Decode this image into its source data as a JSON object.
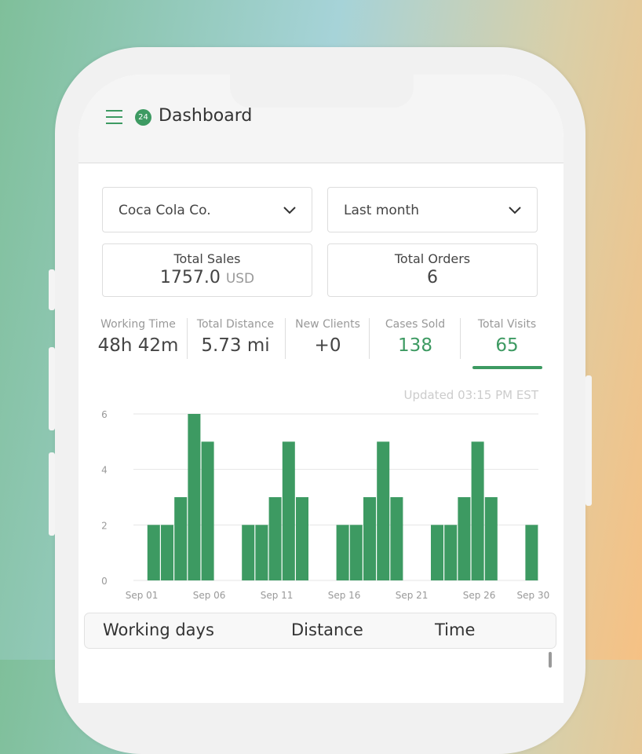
{
  "header": {
    "title": "Dashboard",
    "badge": "24",
    "menu_icon": "hamburger-menu-icon"
  },
  "filters": {
    "company": "Coca Cola Co.",
    "period": "Last month"
  },
  "cards": [
    {
      "label": "Total Sales",
      "value": "1757.0",
      "unit": "USD"
    },
    {
      "label": "Total Orders",
      "value": "6"
    }
  ],
  "stats": [
    {
      "label": "Working Time",
      "value": "48h 42m"
    },
    {
      "label": "Total Distance",
      "value": "5.73 mi"
    },
    {
      "label": "New Clients",
      "value": "+0"
    },
    {
      "label": "Cases Sold",
      "value": "138"
    },
    {
      "label": "Total Visits",
      "value": "65"
    }
  ],
  "selected_stat": "Total Visits",
  "updated": "Updated 03:15 PM EST",
  "colors": {
    "accent": "#3d9a62"
  },
  "chart_data": {
    "type": "bar",
    "ylim": [
      0,
      6
    ],
    "yticks": [
      "0",
      "2",
      "4",
      "6"
    ],
    "grid": true,
    "x_tick_labels": [
      "Sep 01",
      "Sep 06",
      "Sep 11",
      "Sep 16",
      "Sep 21",
      "Sep 26",
      "Sep 30"
    ],
    "x": [
      "Sep 01",
      "Sep 02",
      "Sep 03",
      "Sep 04",
      "Sep 05",
      "Sep 06",
      "Sep 07",
      "Sep 08",
      "Sep 09",
      "Sep 10",
      "Sep 11",
      "Sep 12",
      "Sep 13",
      "Sep 14",
      "Sep 15",
      "Sep 16",
      "Sep 17",
      "Sep 18",
      "Sep 19",
      "Sep 20",
      "Sep 21",
      "Sep 22",
      "Sep 23",
      "Sep 24",
      "Sep 25",
      "Sep 26",
      "Sep 27",
      "Sep 28",
      "Sep 29",
      "Sep 30"
    ],
    "values": [
      0,
      2,
      2,
      3,
      6,
      5,
      0,
      0,
      2,
      2,
      3,
      5,
      3,
      0,
      0,
      2,
      2,
      3,
      5,
      3,
      0,
      0,
      2,
      2,
      3,
      5,
      3,
      0,
      0,
      2
    ]
  },
  "table": {
    "columns": [
      "Working days",
      "Distance",
      "Time"
    ]
  }
}
